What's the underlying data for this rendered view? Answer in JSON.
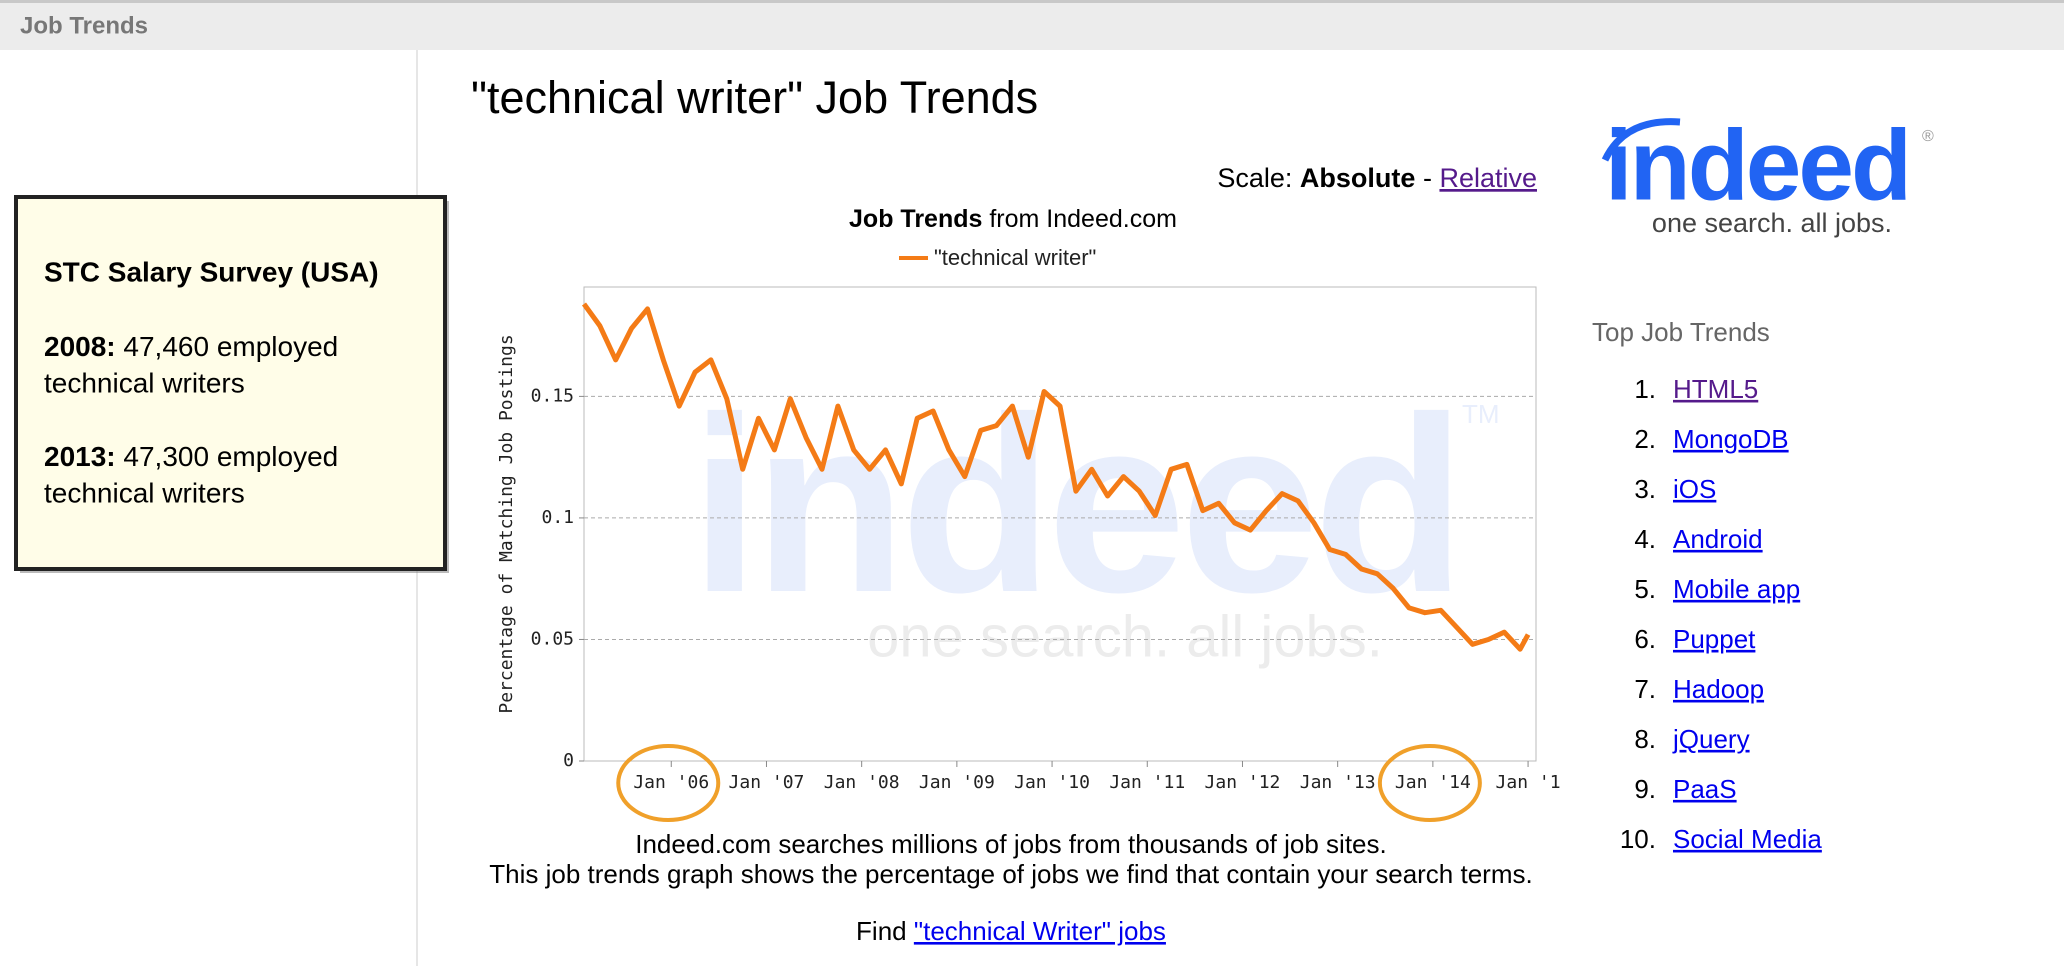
{
  "header": {
    "title": "Job Trends"
  },
  "survey": {
    "title": "STC Salary Survey (USA)",
    "entries": [
      {
        "year": "2008:",
        "lines": [
          "47,460 employed",
          "technical writers"
        ]
      },
      {
        "year": "2013:",
        "lines": [
          "47,300 employed",
          "technical writers"
        ]
      }
    ]
  },
  "page_title": "\"technical writer\" Job Trends",
  "scale": {
    "label": "Scale:",
    "current": "Absolute",
    "separator": "-",
    "link": "Relative"
  },
  "chart_data": {
    "type": "line",
    "title": "Job Trends",
    "title_suffix": "from Indeed.com",
    "ylabel": "Percentage of Matching Job Postings",
    "watermark": {
      "logo": "indeed",
      "tagline": "one search. all jobs.",
      "mark": "TM"
    },
    "x": [
      "2005-02",
      "2005-04",
      "2005-06",
      "2005-08",
      "2005-10",
      "2005-12",
      "2006-02",
      "2006-04",
      "2006-06",
      "2006-08",
      "2006-10",
      "2006-12",
      "2007-02",
      "2007-04",
      "2007-06",
      "2007-08",
      "2007-10",
      "2007-12",
      "2008-02",
      "2008-04",
      "2008-06",
      "2008-08",
      "2008-10",
      "2008-12",
      "2009-02",
      "2009-04",
      "2009-06",
      "2009-08",
      "2009-10",
      "2009-12",
      "2010-02",
      "2010-04",
      "2010-06",
      "2010-08",
      "2010-10",
      "2010-12",
      "2011-02",
      "2011-04",
      "2011-06",
      "2011-08",
      "2011-10",
      "2011-12",
      "2012-02",
      "2012-04",
      "2012-06",
      "2012-08",
      "2012-10",
      "2012-12",
      "2013-02",
      "2013-04",
      "2013-06",
      "2013-08",
      "2013-10",
      "2013-12",
      "2014-02",
      "2014-04",
      "2014-06",
      "2014-08",
      "2014-10",
      "2014-12",
      "2015-01"
    ],
    "series": [
      {
        "name": "\"technical writer\"",
        "color": "#f47b16",
        "values": [
          0.188,
          0.179,
          0.165,
          0.178,
          0.186,
          0.165,
          0.146,
          0.16,
          0.165,
          0.149,
          0.12,
          0.141,
          0.128,
          0.149,
          0.133,
          0.12,
          0.146,
          0.128,
          0.12,
          0.128,
          0.114,
          0.141,
          0.144,
          0.128,
          0.117,
          0.136,
          0.138,
          0.146,
          0.125,
          0.152,
          0.146,
          0.111,
          0.12,
          0.109,
          0.117,
          0.111,
          0.101,
          0.12,
          0.122,
          0.103,
          0.106,
          0.098,
          0.095,
          0.103,
          0.11,
          0.107,
          0.098,
          0.087,
          0.085,
          0.079,
          0.077,
          0.071,
          0.063,
          0.061,
          0.062,
          0.055,
          0.048,
          0.05,
          0.053,
          0.046,
          0.052
        ]
      }
    ],
    "xlim": [
      "2005-02",
      "2015-02"
    ],
    "xticks": [
      {
        "value": "2006-01",
        "label": "Jan '06"
      },
      {
        "value": "2007-01",
        "label": "Jan '07"
      },
      {
        "value": "2008-01",
        "label": "Jan '08"
      },
      {
        "value": "2009-01",
        "label": "Jan '09"
      },
      {
        "value": "2010-01",
        "label": "Jan '10"
      },
      {
        "value": "2011-01",
        "label": "Jan '11"
      },
      {
        "value": "2012-01",
        "label": "Jan '12"
      },
      {
        "value": "2013-01",
        "label": "Jan '13"
      },
      {
        "value": "2014-01",
        "label": "Jan '14"
      },
      {
        "value": "2015-01",
        "label": "Jan '1"
      }
    ],
    "ylim": [
      0,
      0.195
    ],
    "yticks": [
      0,
      0.05,
      0.1,
      0.15
    ],
    "grid": true
  },
  "footer": {
    "lines": [
      "Indeed.com searches millions of jobs from thousands of job sites.",
      "This job trends graph shows the percentage of jobs we find that contain your search terms."
    ],
    "find": "Find",
    "link": "\"technical Writer\" jobs"
  },
  "logo": {
    "name": "indeed",
    "tagline": "one search. all jobs.",
    "mark": "®"
  },
  "trends": {
    "heading": "Top Job Trends",
    "items": [
      {
        "rank": "1.",
        "label": "HTML5"
      },
      {
        "rank": "2.",
        "label": "MongoDB"
      },
      {
        "rank": "3.",
        "label": "iOS"
      },
      {
        "rank": "4.",
        "label": "Android"
      },
      {
        "rank": "5.",
        "label": "Mobile app"
      },
      {
        "rank": "6.",
        "label": "Puppet"
      },
      {
        "rank": "7.",
        "label": "Hadoop"
      },
      {
        "rank": "8.",
        "label": "jQuery"
      },
      {
        "rank": "9.",
        "label": "PaaS"
      },
      {
        "rank": "10.",
        "label": "Social Media"
      }
    ]
  }
}
